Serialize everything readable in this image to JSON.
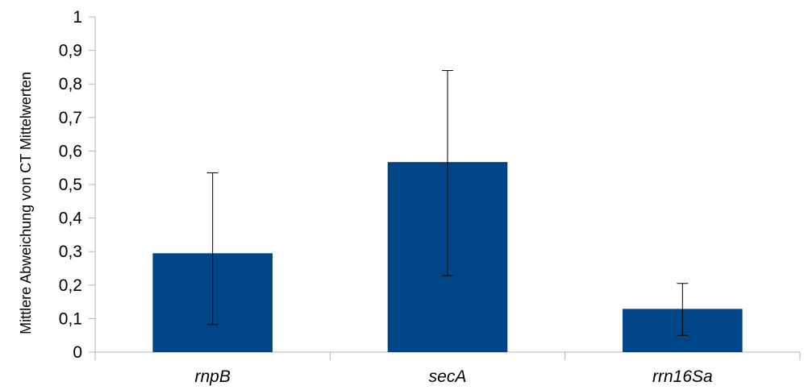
{
  "chart_data": {
    "type": "bar",
    "categories": [
      "rnpB",
      "secA",
      "rrn16Sa"
    ],
    "values": [
      0.295,
      0.567,
      0.129
    ],
    "error_low": [
      0.082,
      0.228,
      0.05
    ],
    "error_high": [
      0.535,
      0.84,
      0.205
    ],
    "title": "",
    "xlabel": "",
    "ylabel": "Mittlere Abweichung von CT Mittelwerten",
    "ylim": [
      0,
      1
    ],
    "yticks": [
      0,
      0.1,
      0.2,
      0.3,
      0.4,
      0.5,
      0.6,
      0.7,
      0.8,
      0.9,
      1
    ],
    "ytick_labels": [
      "0",
      "0,1",
      "0,2",
      "0,3",
      "0,4",
      "0,5",
      "0,6",
      "0,7",
      "0,8",
      "0,9",
      "1"
    ],
    "grid": false,
    "legend": "none",
    "colors": {
      "bar": "#004586",
      "axis": "#b3b3b3",
      "error_bar": "#000000"
    }
  }
}
